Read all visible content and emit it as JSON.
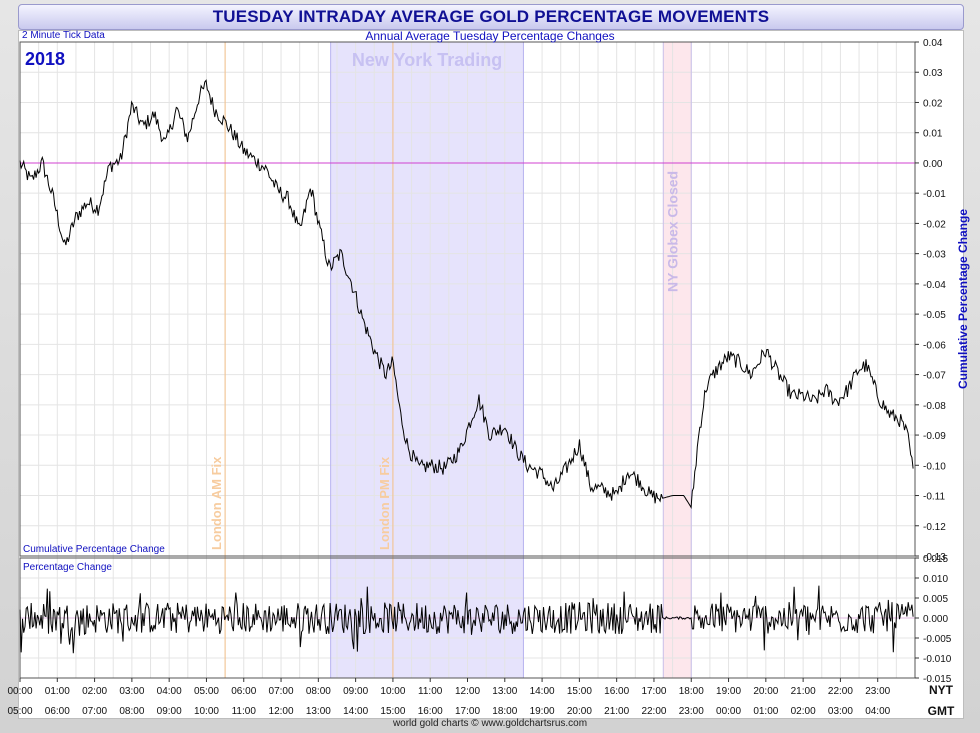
{
  "title": "TUESDAY INTRADAY AVERAGE GOLD PERCENTAGE MOVEMENTS",
  "subtitle": "Annual Average Tuesday Percentage Changes",
  "tick_note": "2 Minute Tick Data",
  "year": "2018",
  "footer": "world gold charts © www.goldchartsrus.com",
  "colors": {
    "title_text": "#101094",
    "label_blue": "#1010c0",
    "ny_band": "#e6e3fc",
    "globex_band": "#fde7ec",
    "fix_line": "#f4c089",
    "zero_line": "#d040d0",
    "series": "#000000"
  },
  "chart_data": [
    {
      "type": "line",
      "panel": "upper",
      "ylabel": "Cumulative Percentage Change",
      "panel_label": "Cumulative Percentage Change",
      "ylim": [
        -0.13,
        0.04
      ],
      "yticks": [
        "0.04",
        "0.03",
        "0.02",
        "0.01",
        "0.00",
        "-0.01",
        "-0.02",
        "-0.03",
        "-0.04",
        "-0.05",
        "-0.06",
        "-0.07",
        "-0.08",
        "-0.09",
        "-0.10",
        "-0.11",
        "-0.12",
        "-0.13"
      ],
      "xticks_nyt": [
        "00:00",
        "01:00",
        "02:00",
        "03:00",
        "04:00",
        "05:00",
        "06:00",
        "07:00",
        "08:00",
        "09:00",
        "10:00",
        "11:00",
        "12:00",
        "13:00",
        "14:00",
        "15:00",
        "16:00",
        "17:00",
        "18:00",
        "19:00",
        "20:00",
        "21:00",
        "22:00",
        "23:00"
      ],
      "xticks_gmt": [
        "05:00",
        "06:00",
        "07:00",
        "08:00",
        "09:00",
        "10:00",
        "11:00",
        "12:00",
        "13:00",
        "14:00",
        "15:00",
        "16:00",
        "17:00",
        "18:00",
        "19:00",
        "20:00",
        "21:00",
        "22:00",
        "23:00",
        "00:00",
        "01:00",
        "02:00",
        "03:00",
        "04:00"
      ],
      "xaxis_nyt_label": "NYT",
      "xaxis_gmt_label": "GMT",
      "x_unit": "hours (NYT)",
      "xlim": [
        0,
        24
      ],
      "grid": true,
      "keypoints": [
        [
          0.0,
          0.0
        ],
        [
          0.3,
          -0.006
        ],
        [
          0.6,
          0.0
        ],
        [
          0.9,
          -0.012
        ],
        [
          1.2,
          -0.028
        ],
        [
          1.5,
          -0.018
        ],
        [
          1.8,
          -0.013
        ],
        [
          2.1,
          -0.015
        ],
        [
          2.4,
          -0.001
        ],
        [
          2.7,
          0.001
        ],
        [
          3.0,
          0.019
        ],
        [
          3.3,
          0.012
        ],
        [
          3.6,
          0.016
        ],
        [
          3.9,
          0.006
        ],
        [
          4.2,
          0.018
        ],
        [
          4.5,
          0.008
        ],
        [
          4.8,
          0.022
        ],
        [
          5.0,
          0.026
        ],
        [
          5.2,
          0.018
        ],
        [
          5.4,
          0.015
        ],
        [
          5.7,
          0.01
        ],
        [
          6.0,
          0.004
        ],
        [
          6.3,
          0.001
        ],
        [
          6.6,
          -0.002
        ],
        [
          6.9,
          -0.009
        ],
        [
          7.2,
          -0.012
        ],
        [
          7.5,
          -0.023
        ],
        [
          7.8,
          -0.008
        ],
        [
          8.0,
          -0.02
        ],
        [
          8.3,
          -0.035
        ],
        [
          8.6,
          -0.03
        ],
        [
          8.9,
          -0.04
        ],
        [
          9.2,
          -0.052
        ],
        [
          9.5,
          -0.062
        ],
        [
          9.8,
          -0.07
        ],
        [
          10.0,
          -0.066
        ],
        [
          10.2,
          -0.083
        ],
        [
          10.4,
          -0.094
        ],
        [
          10.7,
          -0.101
        ],
        [
          11.0,
          -0.1
        ],
        [
          11.4,
          -0.101
        ],
        [
          11.8,
          -0.095
        ],
        [
          12.0,
          -0.088
        ],
        [
          12.3,
          -0.078
        ],
        [
          12.6,
          -0.09
        ],
        [
          13.0,
          -0.087
        ],
        [
          13.3,
          -0.095
        ],
        [
          13.6,
          -0.1
        ],
        [
          14.0,
          -0.103
        ],
        [
          14.3,
          -0.108
        ],
        [
          14.7,
          -0.1
        ],
        [
          15.0,
          -0.093
        ],
        [
          15.3,
          -0.107
        ],
        [
          15.6,
          -0.108
        ],
        [
          16.0,
          -0.11
        ],
        [
          16.3,
          -0.102
        ],
        [
          16.6,
          -0.105
        ],
        [
          16.9,
          -0.11
        ],
        [
          17.2,
          -0.111
        ],
        [
          17.5,
          -0.11
        ],
        [
          17.8,
          -0.11
        ],
        [
          18.0,
          -0.114
        ],
        [
          18.2,
          -0.09
        ],
        [
          18.4,
          -0.074
        ],
        [
          18.7,
          -0.068
        ],
        [
          19.0,
          -0.064
        ],
        [
          19.3,
          -0.066
        ],
        [
          19.6,
          -0.07
        ],
        [
          20.0,
          -0.062
        ],
        [
          20.3,
          -0.069
        ],
        [
          20.7,
          -0.077
        ],
        [
          21.0,
          -0.077
        ],
        [
          21.3,
          -0.079
        ],
        [
          21.6,
          -0.075
        ],
        [
          21.9,
          -0.079
        ],
        [
          22.2,
          -0.075
        ],
        [
          22.5,
          -0.068
        ],
        [
          22.7,
          -0.067
        ],
        [
          23.0,
          -0.077
        ],
        [
          23.3,
          -0.083
        ],
        [
          23.6,
          -0.085
        ],
        [
          23.8,
          -0.09
        ],
        [
          23.95,
          -0.102
        ]
      ],
      "annotations": {
        "ny_trading": {
          "label": "New York Trading",
          "start": 8.33,
          "end": 13.5
        },
        "globex_closed": {
          "label": "NY Globex Closed",
          "start": 17.25,
          "end": 18.0
        },
        "london_am_fix": {
          "label": "London AM Fix",
          "x": 5.5
        },
        "london_pm_fix": {
          "label": "London PM Fix",
          "x": 10.0
        }
      }
    },
    {
      "type": "line",
      "panel": "lower",
      "panel_label": "Percentage Change",
      "ylim": [
        -0.015,
        0.015
      ],
      "yticks": [
        "0.015",
        "0.010",
        "0.005",
        "0.000",
        "-0.005",
        "-0.010",
        "-0.015"
      ],
      "typical_amplitude": 0.004,
      "max_amplitude": 0.01
    }
  ]
}
